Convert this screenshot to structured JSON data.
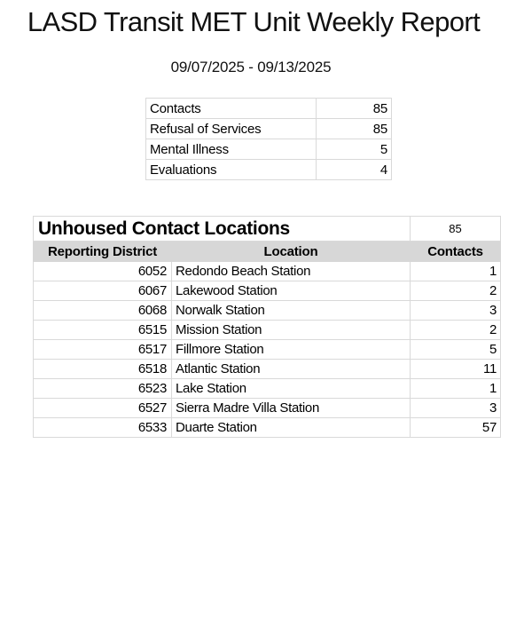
{
  "report": {
    "title": "LASD Transit MET Unit Weekly Report",
    "date_range": "09/07/2025 - 09/13/2025"
  },
  "summary": {
    "rows": [
      {
        "label": "Contacts",
        "value": "85"
      },
      {
        "label": "Refusal of Services",
        "value": "85"
      },
      {
        "label": "Mental Illness",
        "value": "5"
      },
      {
        "label": "Evaluations",
        "value": "4"
      }
    ]
  },
  "locations": {
    "title": "Unhoused Contact Locations",
    "total": "85",
    "headers": [
      "Reporting District",
      "Location",
      "Contacts"
    ],
    "rows": [
      {
        "district": "6052",
        "location": "Redondo Beach Station",
        "contacts": "1"
      },
      {
        "district": "6067",
        "location": "Lakewood Station",
        "contacts": "2"
      },
      {
        "district": "6068",
        "location": "Norwalk Station",
        "contacts": "3"
      },
      {
        "district": "6515",
        "location": "Mission Station",
        "contacts": "2"
      },
      {
        "district": "6517",
        "location": "Fillmore Station",
        "contacts": "5"
      },
      {
        "district": "6518",
        "location": "Atlantic Station",
        "contacts": "11"
      },
      {
        "district": "6523",
        "location": "Lake Station",
        "contacts": "1"
      },
      {
        "district": "6527",
        "location": "Sierra Madre Villa Station",
        "contacts": "3"
      },
      {
        "district": "6533",
        "location": "Duarte Station",
        "contacts": "57"
      }
    ]
  },
  "colors": {
    "table_border": "#d9d9d9",
    "header_background": "#d7d7d7",
    "text": "#000000"
  }
}
